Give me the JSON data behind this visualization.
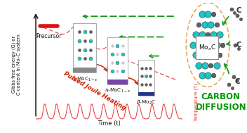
{
  "fig_width": 3.52,
  "fig_height": 1.89,
  "dpi": 100,
  "bg_color": "#ffffff",
  "pulse_color": "#e83030",
  "pulse_lw": 0.7,
  "precursor_bar_color": "#dd1111",
  "teal_color": "#1ac8c8",
  "dark_gray_color": "#606060",
  "green_color": "#1a9a1a",
  "orange_color": "#e8a050",
  "ylabel_left": "Gibbs free energy (G) or\nC content in Mo–C system",
  "ylabel_left_fontsize": 4.8,
  "xlabel": "Time (t)",
  "xlabel_fontsize": 6.0,
  "ylabel_right": "Temperature (T)",
  "ylabel_right_fontsize": 4.8,
  "precursor_label": "Precursor",
  "pulsed_joule_label": "Pulsed Joule Heating",
  "pulsed_joule_fontsize": 6.2,
  "pulsed_joule_rotation": -30,
  "carbon_diffusion_label": "CARBON\nDIFFUSION",
  "carbon_diffusion_color": "#009900",
  "carbon_diffusion_fontsize": 8.5
}
